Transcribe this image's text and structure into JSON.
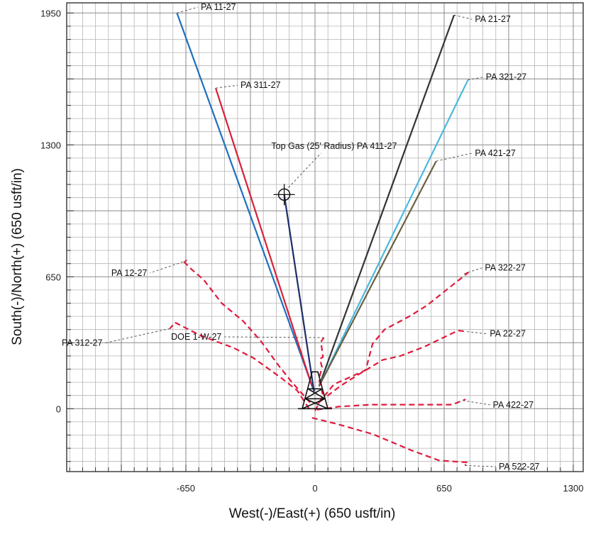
{
  "chart_data": {
    "type": "line",
    "title": "",
    "xlabel": "West(-)/East(+) (650 usft/in)",
    "ylabel": "South(-)/North(+) (650 usft/in)",
    "xlim": [
      -1250,
      1350
    ],
    "ylim": [
      -310,
      2000
    ],
    "x_ticks": [
      -650,
      0,
      650,
      1300
    ],
    "y_ticks": [
      0,
      650,
      1300,
      1950
    ],
    "x_tick_labels": [
      "-650",
      "0",
      "650",
      "1300"
    ],
    "y_tick_labels": [
      "0",
      "650",
      "1300",
      "1950"
    ],
    "grid": true,
    "marker": {
      "label": "Top Gas (25' Radius) PA 411-27",
      "x": -155,
      "y": 1055,
      "label_x": -220,
      "label_y": 1280
    },
    "series": [
      {
        "name": "PA 11-27",
        "color": "#1f6fbf",
        "dashed": false,
        "points": [
          [
            -10,
            100
          ],
          [
            -695,
            1950
          ]
        ],
        "label_x": -575,
        "label_y": 1965
      },
      {
        "name": "PA 311-27",
        "color": "#d8203a",
        "dashed": false,
        "points": [
          [
            -15,
            110
          ],
          [
            -500,
            1580
          ]
        ],
        "label_x": -375,
        "label_y": 1580
      },
      {
        "name": "PA 411-27",
        "color": "#1c2d6b",
        "dashed": false,
        "points": [
          [
            -5,
            85
          ],
          [
            -155,
            1055
          ]
        ],
        "label_x": null,
        "label_y": null
      },
      {
        "name": "PA 21-27",
        "color": "#333333",
        "dashed": false,
        "points": [
          [
            20,
            110
          ],
          [
            700,
            1940
          ]
        ],
        "label_x": 805,
        "label_y": 1905
      },
      {
        "name": "PA 321-27",
        "color": "#4cb8e0",
        "dashed": false,
        "points": [
          [
            20,
            110
          ],
          [
            770,
            1620
          ]
        ],
        "label_x": 860,
        "label_y": 1620
      },
      {
        "name": "PA 421-27",
        "color": "#6a6040",
        "dashed": false,
        "points": [
          [
            20,
            110
          ],
          [
            610,
            1220
          ]
        ],
        "label_x": 805,
        "label_y": 1245
      },
      {
        "name": "PA 12-27",
        "color": "#e01a3c",
        "dashed": true,
        "points": [
          [
            -25,
            30
          ],
          [
            -120,
            135
          ],
          [
            -185,
            215
          ],
          [
            -270,
            330
          ],
          [
            -360,
            430
          ],
          [
            -470,
            520
          ],
          [
            -560,
            635
          ],
          [
            -625,
            690
          ],
          [
            -665,
            730
          ],
          [
            -645,
            730
          ]
        ],
        "label_x": -845,
        "label_y": 655
      },
      {
        "name": "PA 312-27",
        "color": "#e01a3c",
        "dashed": true,
        "points": [
          [
            -30,
            0
          ],
          [
            -90,
            90
          ],
          [
            -175,
            155
          ],
          [
            -310,
            250
          ],
          [
            -410,
            300
          ],
          [
            -575,
            360
          ],
          [
            -705,
            425
          ],
          [
            -730,
            395
          ]
        ],
        "label_x": -1070,
        "label_y": 310
      },
      {
        "name": "DOE 1-W-27",
        "color": "#e01a3c",
        "dashed": true,
        "points": [
          [
            0,
            -10
          ],
          [
            40,
            65
          ],
          [
            20,
            145
          ],
          [
            35,
            205
          ],
          [
            25,
            245
          ],
          [
            40,
            255
          ],
          [
            30,
            330
          ],
          [
            45,
            350
          ]
        ],
        "label_x": -470,
        "label_y": 340
      },
      {
        "name": "PA 322-27",
        "color": "#e01a3c",
        "dashed": true,
        "points": [
          [
            15,
            25
          ],
          [
            95,
            120
          ],
          [
            255,
            190
          ],
          [
            290,
            320
          ],
          [
            350,
            390
          ],
          [
            475,
            455
          ],
          [
            565,
            510
          ],
          [
            770,
            670
          ],
          [
            750,
            665
          ]
        ],
        "label_x": 855,
        "label_y": 680
      },
      {
        "name": "PA 22-27",
        "color": "#e01a3c",
        "dashed": true,
        "points": [
          [
            25,
            35
          ],
          [
            125,
            110
          ],
          [
            205,
            160
          ],
          [
            340,
            240
          ],
          [
            430,
            260
          ],
          [
            550,
            305
          ],
          [
            720,
            385
          ],
          [
            765,
            380
          ]
        ],
        "label_x": 880,
        "label_y": 355
      },
      {
        "name": "PA 422-27",
        "color": "#e01a3c",
        "dashed": true,
        "points": [
          [
            10,
            -5
          ],
          [
            120,
            10
          ],
          [
            285,
            20
          ],
          [
            465,
            20
          ],
          [
            690,
            20
          ],
          [
            755,
            45
          ],
          [
            745,
            40
          ]
        ],
        "label_x": 895,
        "label_y": 5
      },
      {
        "name": "PA 522-27",
        "color": "#e01a3c",
        "dashed": true,
        "points": [
          [
            -15,
            -45
          ],
          [
            110,
            -75
          ],
          [
            290,
            -125
          ],
          [
            485,
            -205
          ],
          [
            625,
            -255
          ],
          [
            770,
            -265
          ],
          [
            755,
            -280
          ]
        ],
        "label_x": 925,
        "label_y": -300
      }
    ]
  }
}
